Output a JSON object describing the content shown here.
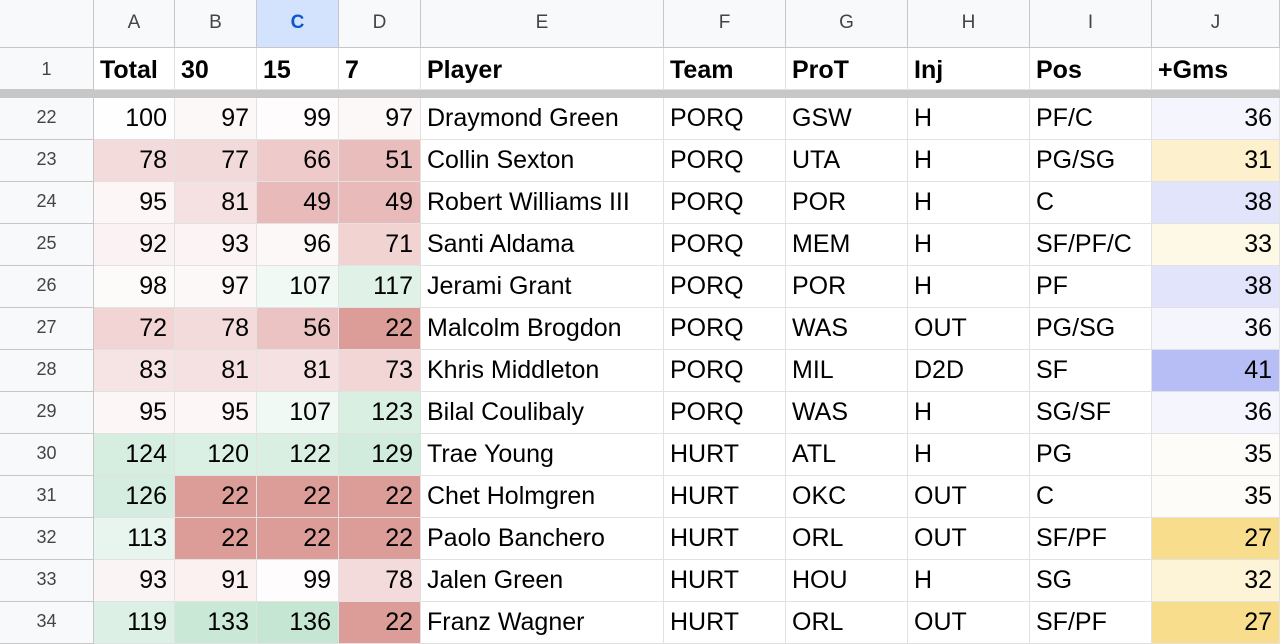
{
  "columns": [
    {
      "letter": "A",
      "header": "Total",
      "selected": false
    },
    {
      "letter": "B",
      "header": "30",
      "selected": false
    },
    {
      "letter": "C",
      "header": "15",
      "selected": true
    },
    {
      "letter": "D",
      "header": "7",
      "selected": false
    },
    {
      "letter": "E",
      "header": "Player",
      "selected": false
    },
    {
      "letter": "F",
      "header": "Team",
      "selected": false
    },
    {
      "letter": "G",
      "header": "ProT",
      "selected": false
    },
    {
      "letter": "H",
      "header": "Inj",
      "selected": false
    },
    {
      "letter": "I",
      "header": "Pos",
      "selected": false
    },
    {
      "letter": "J",
      "header": "+Gms",
      "selected": false
    }
  ],
  "header_row_number": "1",
  "rows": [
    {
      "n": "22",
      "total": "100",
      "d30": "97",
      "d15": "99",
      "d7": "97",
      "player": "Draymond Green",
      "team": "PORQ",
      "prot": "GSW",
      "inj": "H",
      "pos": "PF/C",
      "gms": "36",
      "colors": [
        "#fefefe",
        "#fdf8f8",
        "#fefcfc",
        "#fdf8f8",
        "#ffffff",
        "#ffffff",
        "#ffffff",
        "#ffffff",
        "#ffffff",
        "#f4f5fd"
      ]
    },
    {
      "n": "23",
      "total": "78",
      "d30": "77",
      "d15": "66",
      "d7": "51",
      "player": "Collin Sexton",
      "team": "PORQ",
      "prot": "UTA",
      "inj": "H",
      "pos": "PG/SG",
      "gms": "31",
      "colors": [
        "#f3dbdb",
        "#f3dada",
        "#eecaca",
        "#e8bdbc",
        "#ffffff",
        "#ffffff",
        "#ffffff",
        "#ffffff",
        "#ffffff",
        "#fdf1cd"
      ]
    },
    {
      "n": "24",
      "total": "95",
      "d30": "81",
      "d15": "49",
      "d7": "49",
      "player": "Robert Williams III",
      "team": "PORQ",
      "prot": "POR",
      "inj": "H",
      "pos": "C",
      "gms": "38",
      "colors": [
        "#fcf6f6",
        "#f5e1e1",
        "#e8bbba",
        "#e8bbba",
        "#ffffff",
        "#ffffff",
        "#ffffff",
        "#ffffff",
        "#ffffff",
        "#e1e4fb"
      ]
    },
    {
      "n": "25",
      "total": "92",
      "d30": "93",
      "d15": "96",
      "d7": "71",
      "player": "Santi Aldama",
      "team": "PORQ",
      "prot": "MEM",
      "inj": "H",
      "pos": "SF/PF/C",
      "gms": "33",
      "colors": [
        "#fbf3f3",
        "#fcf4f4",
        "#fdf8f8",
        "#f1d3d2",
        "#ffffff",
        "#ffffff",
        "#ffffff",
        "#ffffff",
        "#ffffff",
        "#fef8e7"
      ]
    },
    {
      "n": "26",
      "total": "98",
      "d30": "97",
      "d15": "107",
      "d7": "117",
      "player": "Jerami Grant",
      "team": "PORQ",
      "prot": "POR",
      "inj": "H",
      "pos": "PF",
      "gms": "38",
      "colors": [
        "#fdfafa",
        "#fdf8f8",
        "#f1f9f4",
        "#e0f2e8",
        "#ffffff",
        "#ffffff",
        "#ffffff",
        "#ffffff",
        "#ffffff",
        "#e1e4fb"
      ]
    },
    {
      "n": "27",
      "total": "72",
      "d30": "78",
      "d15": "56",
      "d7": "22",
      "player": "Malcolm Brogdon",
      "team": "PORQ",
      "prot": "WAS",
      "inj": "OUT",
      "pos": "PG/SG",
      "gms": "36",
      "colors": [
        "#f1d4d3",
        "#f3dbdb",
        "#ebc3c2",
        "#dc9c97",
        "#ffffff",
        "#ffffff",
        "#ffffff",
        "#ffffff",
        "#ffffff",
        "#f4f5fd"
      ]
    },
    {
      "n": "28",
      "total": "83",
      "d30": "81",
      "d15": "81",
      "d7": "73",
      "player": "Khris Middleton",
      "team": "PORQ",
      "prot": "MIL",
      "inj": "D2D",
      "pos": "SF",
      "gms": "41",
      "colors": [
        "#f6e4e4",
        "#f5e1e1",
        "#f5e1e1",
        "#f2d6d6",
        "#ffffff",
        "#ffffff",
        "#ffffff",
        "#ffffff",
        "#ffffff",
        "#b6bef5"
      ]
    },
    {
      "n": "29",
      "total": "95",
      "d30": "95",
      "d15": "107",
      "d7": "123",
      "player": "Bilal Coulibaly",
      "team": "PORQ",
      "prot": "WAS",
      "inj": "H",
      "pos": "SG/SF",
      "gms": "36",
      "colors": [
        "#fcf6f6",
        "#fcf6f6",
        "#f1f9f4",
        "#d9efe2",
        "#ffffff",
        "#ffffff",
        "#ffffff",
        "#ffffff",
        "#ffffff",
        "#f4f5fd"
      ]
    },
    {
      "n": "30",
      "total": "124",
      "d30": "120",
      "d15": "122",
      "d7": "129",
      "player": "Trae Young",
      "team": "HURT",
      "prot": "ATL",
      "inj": "H",
      "pos": "PG",
      "gms": "35",
      "colors": [
        "#d6eee0",
        "#dbf0e4",
        "#d9efe2",
        "#d1ecdc",
        "#ffffff",
        "#ffffff",
        "#ffffff",
        "#ffffff",
        "#ffffff",
        "#fdfcf8"
      ]
    },
    {
      "n": "31",
      "total": "126",
      "d30": "22",
      "d15": "22",
      "d7": "22",
      "player": "Chet Holmgren",
      "team": "HURT",
      "prot": "OKC",
      "inj": "OUT",
      "pos": "C",
      "gms": "35",
      "colors": [
        "#d4ede0",
        "#dc9c97",
        "#dc9c97",
        "#dc9c97",
        "#ffffff",
        "#ffffff",
        "#ffffff",
        "#ffffff",
        "#ffffff",
        "#fdfcf8"
      ]
    },
    {
      "n": "32",
      "total": "113",
      "d30": "22",
      "d15": "22",
      "d7": "22",
      "player": "Paolo Banchero",
      "team": "HURT",
      "prot": "ORL",
      "inj": "OUT",
      "pos": "SF/PF",
      "gms": "27",
      "colors": [
        "#e8f5ee",
        "#dc9c97",
        "#dc9c97",
        "#dc9c97",
        "#ffffff",
        "#ffffff",
        "#ffffff",
        "#ffffff",
        "#ffffff",
        "#f8de8c"
      ]
    },
    {
      "n": "33",
      "total": "93",
      "d30": "91",
      "d15": "99",
      "d7": "78",
      "player": "Jalen Green",
      "team": "HURT",
      "prot": "HOU",
      "inj": "H",
      "pos": "SG",
      "gms": "32",
      "colors": [
        "#fbf4f4",
        "#fbf1f1",
        "#fefcfc",
        "#f3dbdb",
        "#ffffff",
        "#ffffff",
        "#ffffff",
        "#ffffff",
        "#ffffff",
        "#fdf3d6"
      ]
    },
    {
      "n": "34",
      "total": "119",
      "d30": "133",
      "d15": "136",
      "d7": "22",
      "player": "Franz Wagner",
      "team": "HURT",
      "prot": "ORL",
      "inj": "OUT",
      "pos": "SF/PF",
      "gms": "27",
      "colors": [
        "#dcf0e5",
        "#c9e8d6",
        "#c5e6d3",
        "#dc9c97",
        "#ffffff",
        "#ffffff",
        "#ffffff",
        "#ffffff",
        "#ffffff",
        "#f8de8c"
      ]
    }
  ]
}
